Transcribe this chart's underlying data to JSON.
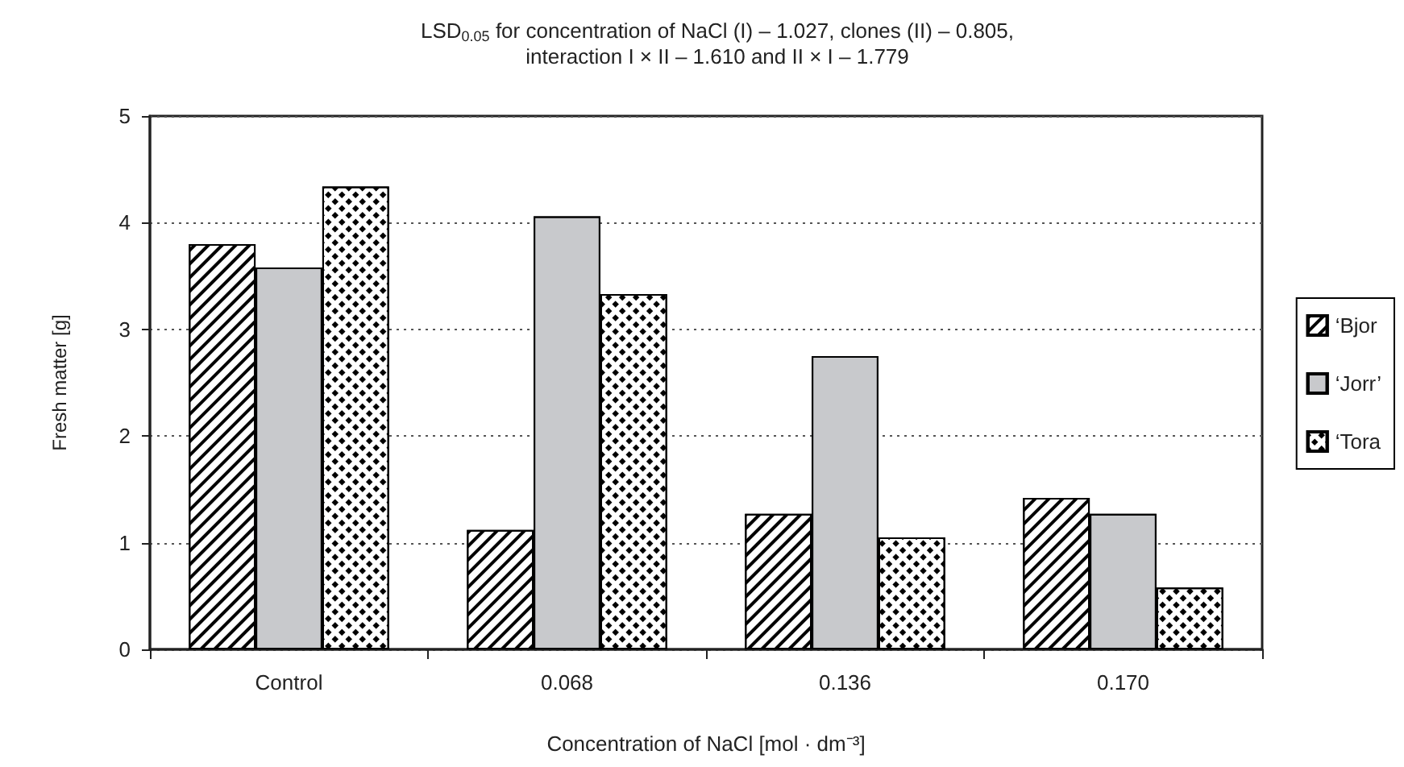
{
  "chart_data": {
    "type": "bar",
    "title": "LSD$_{0.05}$ for concentration of NaCl (I) – 1.027, clones (II) – 0.805,\ninteraction I × II – 1.610 and II × I – 1.779",
    "xlabel": "Concentration of NaCl [mol · dm⁻³]",
    "ylabel": "Fresh matter [g]",
    "categories": [
      "Control",
      "0.068",
      "0.136",
      "0.170"
    ],
    "series": [
      {
        "name": "‘Bjor",
        "color": "#ffffff",
        "values": [
          3.8,
          1.12,
          1.27,
          1.42
        ]
      },
      {
        "name": "‘Jorr’",
        "color": "#c8c9cc",
        "values": [
          3.58,
          4.06,
          2.75,
          1.27
        ]
      },
      {
        "name": "‘Tora",
        "color": "#ffffff",
        "values": [
          4.34,
          3.33,
          1.05,
          0.58
        ]
      }
    ],
    "ylim": [
      0,
      5
    ],
    "yticks": [
      0,
      1,
      2,
      3,
      4,
      5
    ],
    "grid": "y",
    "legend": "right"
  }
}
